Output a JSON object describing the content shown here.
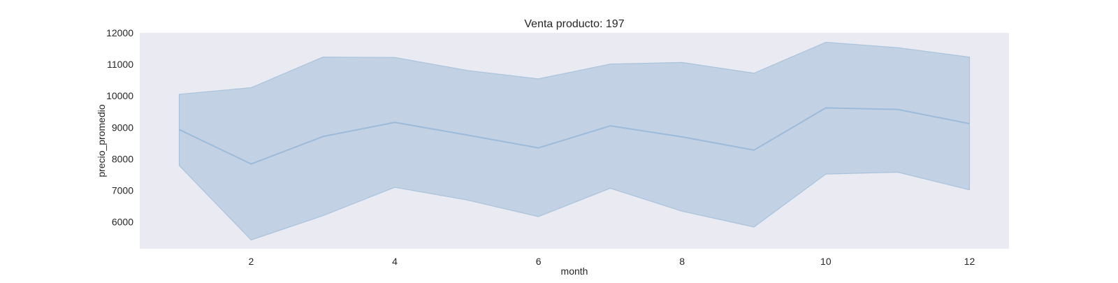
{
  "chart_data": {
    "type": "area",
    "title": "Venta producto: 197",
    "xlabel": "month",
    "ylabel": "precio_promedio",
    "x": [
      1,
      2,
      3,
      4,
      5,
      6,
      7,
      8,
      9,
      10,
      11,
      12
    ],
    "series": [
      {
        "values": [
          8930,
          7840,
          8710,
          9160,
          8760,
          8350,
          9050,
          8700,
          8280,
          9620,
          9570,
          9120
        ],
        "lower": [
          7790,
          5430,
          6200,
          7100,
          6700,
          6170,
          7070,
          6340,
          5840,
          7520,
          7580,
          7020
        ],
        "upper": [
          10050,
          10260,
          11230,
          11220,
          10810,
          10540,
          11010,
          11060,
          10720,
          11700,
          11530,
          11230
        ]
      }
    ],
    "xlim": [
      0.45,
      12.55
    ],
    "ylim": [
      5150,
      12000
    ],
    "xticks": [
      2,
      4,
      6,
      8,
      10,
      12
    ],
    "yticks": [
      6000,
      7000,
      8000,
      9000,
      10000,
      11000,
      12000
    ],
    "grid": false,
    "colors": {
      "background": "#eaeaf2",
      "band": "#c2d2e4",
      "band_edge": "#a9c3dc",
      "line": "#9cbad9"
    }
  }
}
